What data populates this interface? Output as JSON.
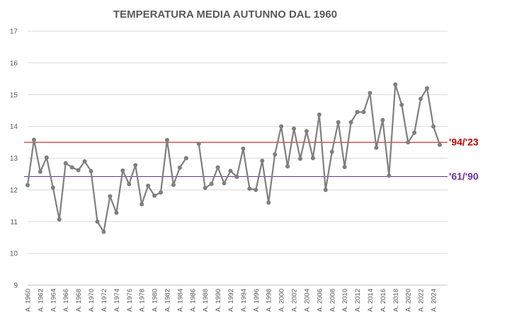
{
  "chart_data": {
    "type": "line",
    "title": "TEMPERATURA MEDIA AUTUNNO DAL 1960",
    "xlabel": "",
    "ylabel": "",
    "ylim": [
      9,
      17
    ],
    "yticks": [
      9,
      10,
      11,
      12,
      13,
      14,
      15,
      16,
      17
    ],
    "grid": true,
    "x_label_prefix": "A. ",
    "x": [
      1960,
      1961,
      1962,
      1963,
      1964,
      1965,
      1966,
      1967,
      1968,
      1969,
      1970,
      1971,
      1972,
      1973,
      1974,
      1975,
      1976,
      1977,
      1978,
      1979,
      1980,
      1981,
      1982,
      1983,
      1984,
      1985,
      1986,
      1987,
      1988,
      1989,
      1990,
      1991,
      1992,
      1993,
      1994,
      1995,
      1996,
      1997,
      1998,
      1999,
      2000,
      2001,
      2002,
      2003,
      2004,
      2005,
      2006,
      2007,
      2008,
      2009,
      2010,
      2011,
      2012,
      2013,
      2014,
      2015,
      2016,
      2017,
      2018,
      2019,
      2020,
      2021,
      2022,
      2023,
      2024,
      2025
    ],
    "x_tick_labels": [
      "A. 1960",
      "A. 1962",
      "A. 1964",
      "A. 1966",
      "A. 1968",
      "A. 1970",
      "A. 1972",
      "A. 1974",
      "A. 1976",
      "A. 1978",
      "A. 1980",
      "A. 1982",
      "A. 1984",
      "A. 1986",
      "A. 1988",
      "A. 1990",
      "A. 1992",
      "A. 1994",
      "A. 1996",
      "A. 1998",
      "A. 2000",
      "A. 2002",
      "A. 2004",
      "A. 2006",
      "A. 2008",
      "A. 2010",
      "A. 2012",
      "A. 2014",
      "A. 2016",
      "A. 2018",
      "A. 2020",
      "A. 2022",
      "A. 2024"
    ],
    "series": [
      {
        "name": "Temperatura media autunno",
        "color": "#7f7f7f",
        "values": [
          12.15,
          13.58,
          12.57,
          13.02,
          12.07,
          11.07,
          12.84,
          12.71,
          12.62,
          12.9,
          12.59,
          11.0,
          10.68,
          11.8,
          11.28,
          12.61,
          12.18,
          12.78,
          11.55,
          12.13,
          11.82,
          11.92,
          13.57,
          12.16,
          12.7,
          13.0,
          null,
          13.45,
          12.06,
          12.19,
          12.71,
          12.21,
          12.6,
          12.41,
          13.3,
          12.04,
          12.0,
          12.92,
          11.6,
          13.12,
          14.0,
          12.74,
          13.93,
          12.98,
          13.85,
          13.0,
          14.37,
          12.0,
          13.2,
          14.13,
          12.72,
          14.13,
          14.45,
          14.45,
          15.05,
          13.33,
          14.2,
          12.45,
          15.32,
          14.68,
          13.5,
          13.8,
          14.87,
          15.2,
          14.0,
          13.42
        ]
      }
    ],
    "reference_lines": [
      {
        "label": "'94/'23",
        "value": 13.5,
        "color": "#c00000"
      },
      {
        "label": "'61/'90",
        "value": 12.42,
        "color": "#7030a0"
      }
    ]
  }
}
